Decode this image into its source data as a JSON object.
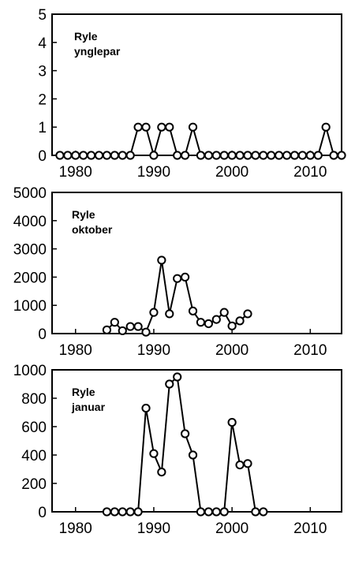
{
  "chart_data": [
    {
      "type": "line",
      "title_lines": [
        "Ryle",
        "ynglepar"
      ],
      "xlim": [
        1977,
        2014
      ],
      "ylim": [
        0,
        5
      ],
      "xticks": [
        1980,
        1990,
        2000,
        2010
      ],
      "yticks": [
        0,
        1,
        2,
        3,
        4,
        5
      ],
      "series": [
        {
          "x": [
            1978,
            1979,
            1980,
            1981,
            1982,
            1983,
            1984,
            1985,
            1986,
            1987,
            1988,
            1989,
            1990,
            1991,
            1992,
            1993,
            1994,
            1995,
            1996,
            1997,
            1998,
            1999,
            2000,
            2001,
            2002,
            2003,
            2004,
            2005,
            2006,
            2007,
            2008,
            2009,
            2010,
            2011,
            2012,
            2013,
            2014
          ],
          "y": [
            0,
            0,
            0,
            0,
            0,
            0,
            0,
            0,
            0,
            0,
            1,
            1,
            0,
            1,
            1,
            0,
            0,
            1,
            0,
            0,
            0,
            0,
            0,
            0,
            0,
            0,
            0,
            0,
            0,
            0,
            0,
            0,
            0,
            0,
            1,
            0,
            0
          ]
        }
      ]
    },
    {
      "type": "line",
      "title_lines": [
        "Ryle",
        "oktober"
      ],
      "xlim": [
        1977,
        2014
      ],
      "ylim": [
        0,
        5000
      ],
      "xticks": [
        1980,
        1990,
        2000,
        2010
      ],
      "yticks": [
        0,
        1000,
        2000,
        3000,
        4000,
        5000
      ],
      "series": [
        {
          "x": [
            1984,
            1985,
            1986,
            1987,
            1988,
            1989,
            1990,
            1991,
            1992,
            1993,
            1994,
            1995,
            1996,
            1997,
            1998,
            1999,
            2000,
            2001,
            2002
          ],
          "y": [
            130,
            400,
            100,
            250,
            250,
            50,
            750,
            2600,
            700,
            1950,
            2000,
            800,
            400,
            350,
            500,
            750,
            270,
            450,
            700
          ]
        }
      ]
    },
    {
      "type": "line",
      "title_lines": [
        "Ryle",
        "januar"
      ],
      "xlim": [
        1977,
        2014
      ],
      "ylim": [
        0,
        1000
      ],
      "xticks": [
        1980,
        1990,
        2000,
        2010
      ],
      "yticks": [
        0,
        200,
        400,
        600,
        800,
        1000
      ],
      "series": [
        {
          "x": [
            1984,
            1985,
            1986,
            1987,
            1988,
            1989,
            1990,
            1991,
            1992,
            1993,
            1994,
            1995,
            1996,
            1997,
            1998,
            1999,
            2000,
            2001,
            2002,
            2003,
            2004
          ],
          "y": [
            0,
            0,
            0,
            0,
            0,
            730,
            410,
            280,
            900,
            950,
            550,
            400,
            0,
            0,
            0,
            0,
            630,
            330,
            340,
            0,
            0
          ]
        }
      ]
    }
  ]
}
